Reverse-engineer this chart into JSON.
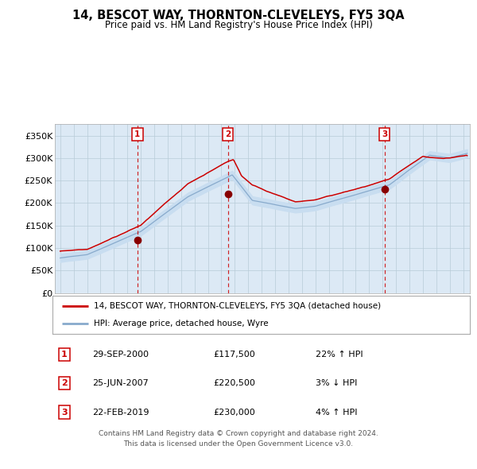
{
  "title": "14, BESCOT WAY, THORNTON-CLEVELEYS, FY5 3QA",
  "subtitle": "Price paid vs. HM Land Registry's House Price Index (HPI)",
  "footer_line1": "Contains HM Land Registry data © Crown copyright and database right 2024.",
  "footer_line2": "This data is licensed under the Open Government Licence v3.0.",
  "legend_label_red": "14, BESCOT WAY, THORNTON-CLEVELEYS, FY5 3QA (detached house)",
  "legend_label_blue": "HPI: Average price, detached house, Wyre",
  "transactions": [
    {
      "num": 1,
      "date": "29-SEP-2000",
      "price": "£117,500",
      "hpi": "22% ↑ HPI",
      "year": 2000.75,
      "value": 117500
    },
    {
      "num": 2,
      "date": "25-JUN-2007",
      "price": "£220,500",
      "hpi": "3% ↓ HPI",
      "year": 2007.48,
      "value": 220500
    },
    {
      "num": 3,
      "date": "22-FEB-2019",
      "price": "£230,000",
      "hpi": "4% ↑ HPI",
      "year": 2019.14,
      "value": 230000
    }
  ],
  "ylim": [
    0,
    375000
  ],
  "yticks": [
    0,
    50000,
    100000,
    150000,
    200000,
    250000,
    300000,
    350000
  ],
  "ytick_labels": [
    "£0",
    "£50K",
    "£100K",
    "£150K",
    "£200K",
    "£250K",
    "£300K",
    "£350K"
  ],
  "xlim_start": 1994.6,
  "xlim_end": 2025.5,
  "bg_color": "#dce9f5",
  "red_line_color": "#cc0000",
  "blue_line_color": "#88aacc",
  "blue_fill_color": "#c8ddf0",
  "dashed_line_color": "#cc0000",
  "marker_color": "#880000",
  "grid_color": "#b8ccd8",
  "title_fontsize": 10.5,
  "subtitle_fontsize": 8.5,
  "tick_fontsize": 7.5,
  "ytick_fontsize": 8.0,
  "legend_fontsize": 7.5,
  "table_fontsize": 8.0,
  "footer_fontsize": 6.5
}
